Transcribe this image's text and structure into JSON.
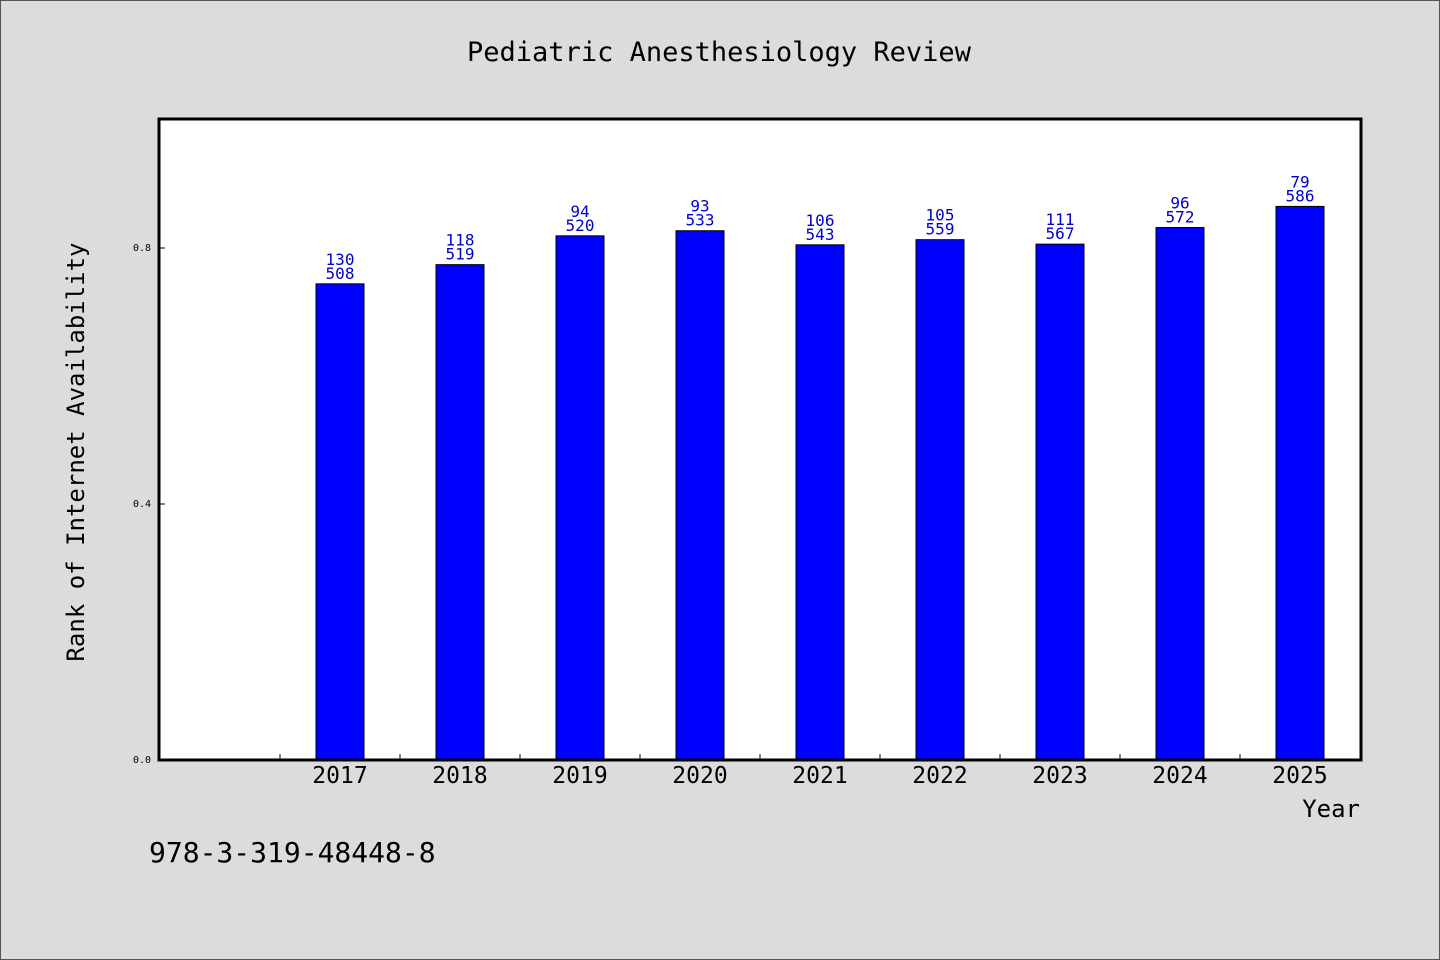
{
  "chart_data": {
    "type": "bar",
    "title": "Pediatric Anesthesiology Review",
    "xlabel": "Year",
    "ylabel": "Rank of Internet Availability",
    "categories": [
      "2017",
      "2018",
      "2019",
      "2020",
      "2021",
      "2022",
      "2023",
      "2024",
      "2025"
    ],
    "values": [
      0.744,
      0.774,
      0.819,
      0.827,
      0.805,
      0.813,
      0.806,
      0.832,
      0.865
    ],
    "label_top": [
      "130",
      "118",
      "94",
      "93",
      "106",
      "105",
      "111",
      "96",
      "79"
    ],
    "label_bottom": [
      "508",
      "519",
      "520",
      "533",
      "543",
      "559",
      "567",
      "572",
      "586"
    ],
    "yticks": [
      0.0,
      0.4,
      0.8
    ],
    "ytick_labels": [
      "0.0",
      "0.4",
      "0.8"
    ],
    "ylim": [
      0,
      1.0
    ],
    "grid": false,
    "bar_color": "#0000ff",
    "label_color": "#0000cc"
  },
  "footnote": "978-3-319-48448-8"
}
